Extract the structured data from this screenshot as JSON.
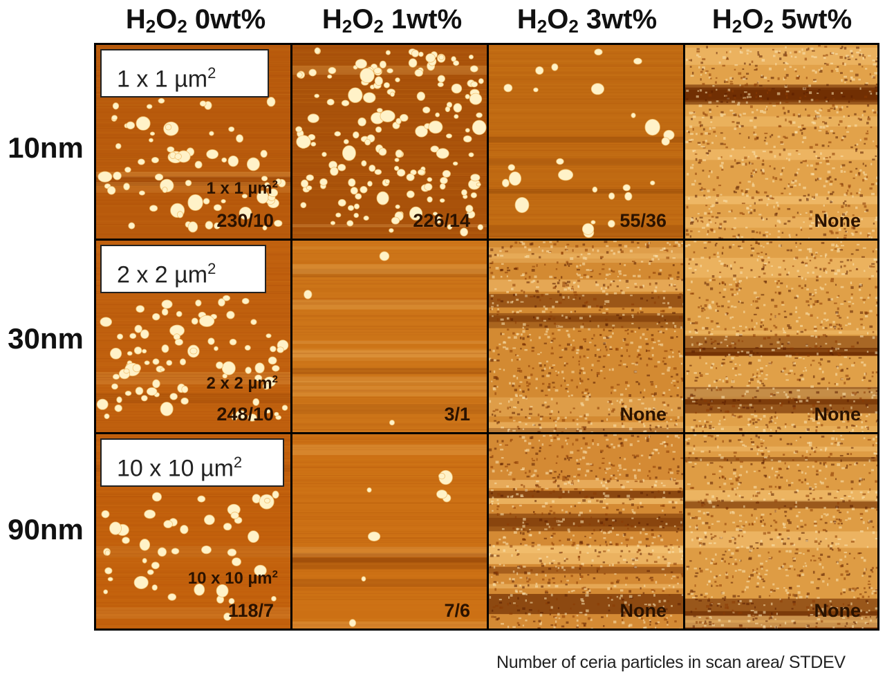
{
  "columns": [
    {
      "prefix": "H",
      "sub1": "2",
      "mid": "O",
      "sub2": "2",
      "conc": " 0wt%"
    },
    {
      "prefix": "H",
      "sub1": "2",
      "mid": "O",
      "sub2": "2",
      "conc": " 1wt%"
    },
    {
      "prefix": "H",
      "sub1": "2",
      "mid": "O",
      "sub2": "2",
      "conc": " 3wt%"
    },
    {
      "prefix": "H",
      "sub1": "2",
      "mid": "O",
      "sub2": "2",
      "conc": " 5wt%"
    }
  ],
  "rows": [
    {
      "label": "10nm",
      "scale": "1 x 1 µm",
      "inner_scale": "1 x 1 µm",
      "sup": "2"
    },
    {
      "label": "30nm",
      "scale": "2 x 2 µm",
      "inner_scale": "2 x 2 µm",
      "sup": "2"
    },
    {
      "label": "90nm",
      "scale": "10 x 10 µm",
      "inner_scale": "10 x 10 µm",
      "sup": "2"
    }
  ],
  "counts": [
    [
      "230/10",
      "226/14",
      "55/36",
      "None"
    ],
    [
      "248/10",
      "3/1",
      "None",
      "None"
    ],
    [
      "118/7",
      "7/6",
      "None",
      "None"
    ]
  ],
  "colors": {
    "afm_dark": "#6b2a00",
    "afm_mid": "#c8640a",
    "afm_light": "#f3c070",
    "particle": "#fff2c8"
  },
  "footnote": "Number of ceria particles in scan area/ STDEV"
}
